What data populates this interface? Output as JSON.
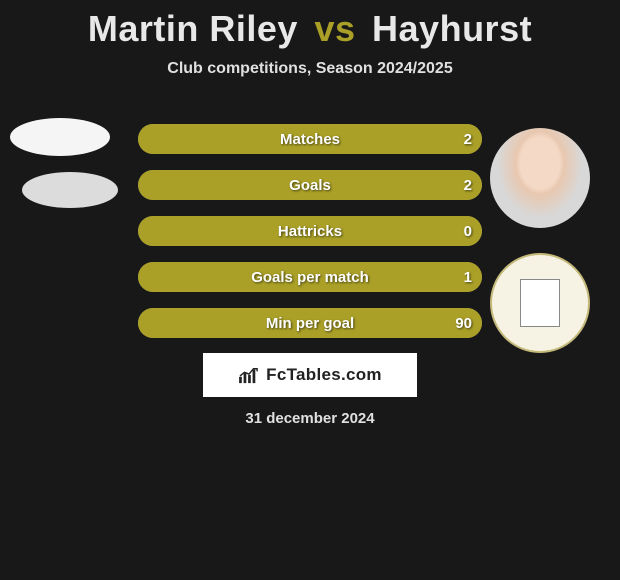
{
  "title": {
    "player1": "Martin Riley",
    "vs": "vs",
    "player2": "Hayhurst",
    "p1_color": "#e8e8e8",
    "vs_color": "#aaa028",
    "p2_color": "#e8e8e8"
  },
  "subtitle": "Club competitions, Season 2024/2025",
  "colors": {
    "background": "#181818",
    "bar_empty": "#888888",
    "p1_bar": "#d6d6d6",
    "p2_bar": "#aaa028",
    "text": "#ffffff"
  },
  "bar": {
    "height": 30,
    "border_radius": 15,
    "gap": 16,
    "total_width": 344
  },
  "stats": [
    {
      "label": "Matches",
      "left_val": "",
      "right_val": "2",
      "left_pct": 0,
      "right_pct": 100
    },
    {
      "label": "Goals",
      "left_val": "",
      "right_val": "2",
      "left_pct": 0,
      "right_pct": 100
    },
    {
      "label": "Hattricks",
      "left_val": "",
      "right_val": "0",
      "left_pct": 0,
      "right_pct": 100
    },
    {
      "label": "Goals per match",
      "left_val": "",
      "right_val": "1",
      "left_pct": 0,
      "right_pct": 100
    },
    {
      "label": "Min per goal",
      "left_val": "",
      "right_val": "90",
      "left_pct": 0,
      "right_pct": 100
    }
  ],
  "brand": "FcTables.com",
  "date": "31 december 2024"
}
